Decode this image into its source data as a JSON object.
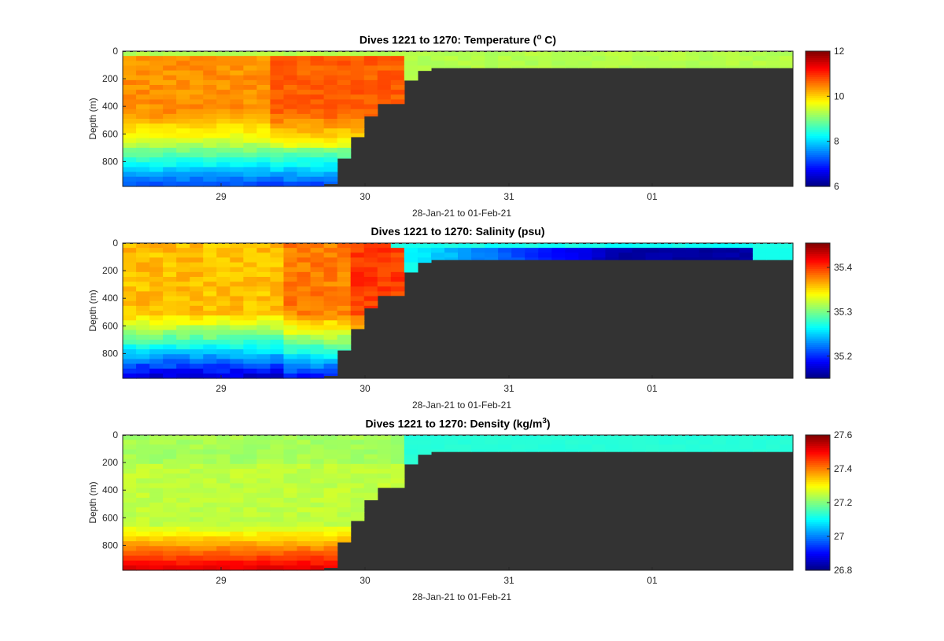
{
  "chart_data": [
    {
      "type": "heatmap",
      "title": "Dives 1221 to 1270: Temperature (",
      "title_sup": "o",
      "title_tail": " C)",
      "xlabel": "28-Jan-21 to 01-Feb-21",
      "ylabel": "Depth (m)",
      "x_ticks": [
        "29",
        "30",
        "31",
        "01"
      ],
      "y_ticks": [
        0,
        200,
        400,
        600,
        800
      ],
      "ylim": [
        0,
        980
      ],
      "colorbar": {
        "min": 6,
        "max": 12,
        "ticks": [
          "6",
          "8",
          "10",
          "12"
        ],
        "colormap": "jet"
      },
      "surface_value": 9.3,
      "profile_description_values": {
        "upper_warm": 10.6,
        "mid": 9.6,
        "deep": 7.2
      }
    },
    {
      "type": "heatmap",
      "title": "Dives 1221 to 1270: Salinity (psu)",
      "xlabel": "28-Jan-21 to 01-Feb-21",
      "ylabel": "Depth (m)",
      "x_ticks": [
        "29",
        "30",
        "31",
        "01"
      ],
      "y_ticks": [
        0,
        200,
        400,
        600,
        800
      ],
      "ylim": [
        0,
        980
      ],
      "colorbar": {
        "min": 35.15,
        "max": 35.455,
        "ticks": [
          "35.2",
          "35.3",
          "35.4"
        ],
        "colormap": "jet"
      },
      "surface_value": 35.27
    },
    {
      "type": "heatmap",
      "title": "Dives 1221 to 1270: Density (kg/m",
      "title_sup": "3",
      "title_tail": ")",
      "xlabel": "28-Jan-21 to 01-Feb-21",
      "ylabel": "Depth (m)",
      "x_ticks": [
        "29",
        "30",
        "31",
        "01"
      ],
      "y_ticks": [
        0,
        200,
        400,
        600,
        800
      ],
      "ylim": [
        0,
        980
      ],
      "colorbar": {
        "min": 26.8,
        "max": 27.6,
        "ticks": [
          "26.8",
          "27",
          "27.2",
          "27.4",
          "27.6"
        ],
        "colormap": "jet"
      },
      "surface_value": 27.13
    }
  ],
  "colors": {
    "no_data": "#333333",
    "axis": "#262626"
  }
}
